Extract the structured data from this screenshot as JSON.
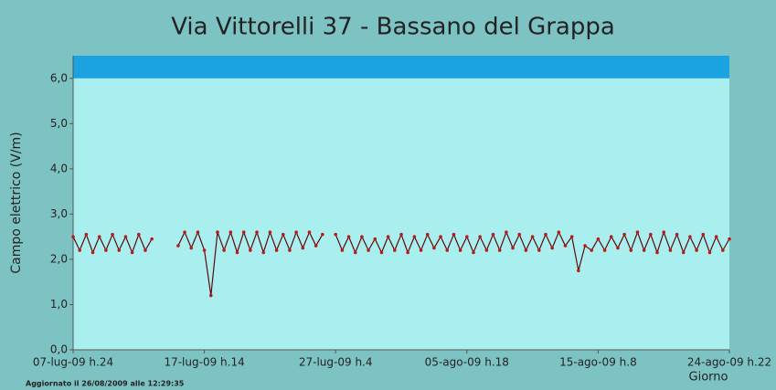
{
  "chart_data": {
    "type": "line",
    "title": "Via Vittorelli 37 - Bassano del Grappa",
    "y_label": "Campo elettrico (V/m)",
    "x_label": "Giorno",
    "footer": "Aggiornato il 26/08/2009 alle 12:29:35",
    "ylim": [
      0,
      6.5
    ],
    "yticks": [
      {
        "value": 0,
        "label": "0,0"
      },
      {
        "value": 1,
        "label": "1,0"
      },
      {
        "value": 2,
        "label": "2,0"
      },
      {
        "value": 3,
        "label": "3,0"
      },
      {
        "value": 4,
        "label": "4,0"
      },
      {
        "value": 5,
        "label": "5,0"
      },
      {
        "value": 6,
        "label": "6,0"
      }
    ],
    "band": [
      6,
      6.5
    ],
    "band_color": "#1aa3e0",
    "categories": [
      "07-lug-09 h.24",
      null,
      null,
      null,
      null,
      null,
      null,
      null,
      null,
      null,
      null,
      null,
      null,
      null,
      null,
      null,
      null,
      null,
      null,
      null,
      "17-lug-09 h.14",
      null,
      null,
      null,
      null,
      null,
      null,
      null,
      null,
      null,
      null,
      null,
      null,
      null,
      null,
      null,
      null,
      null,
      null,
      null,
      "27-lug-09 h.4",
      null,
      null,
      null,
      null,
      null,
      null,
      null,
      null,
      null,
      null,
      null,
      null,
      null,
      null,
      null,
      null,
      null,
      null,
      null,
      "05-ago-09 h.18",
      null,
      null,
      null,
      null,
      null,
      null,
      null,
      null,
      null,
      null,
      null,
      null,
      null,
      null,
      null,
      null,
      null,
      null,
      null,
      "15-ago-09 h.8",
      null,
      null,
      null,
      null,
      null,
      null,
      null,
      null,
      null,
      null,
      null,
      null,
      null,
      null,
      null,
      null,
      null,
      null,
      null,
      "24-ago-09 h.22"
    ],
    "series": [
      {
        "color": "#5a0a0a",
        "values": [
          2.5,
          2.2,
          2.55,
          2.15,
          2.5,
          2.2,
          2.55,
          2.2,
          2.5,
          2.15,
          2.55,
          2.2,
          2.45,
          null,
          null,
          null,
          2.3,
          2.6,
          2.25,
          2.6,
          2.2,
          1.2,
          2.6,
          2.2,
          2.6,
          2.15,
          2.6,
          2.2,
          2.6,
          2.15,
          2.6,
          2.2,
          2.55,
          2.2,
          2.6,
          2.25,
          2.6,
          2.3,
          2.55,
          null,
          2.55,
          2.2,
          2.5,
          2.15,
          2.5,
          2.2,
          2.45,
          2.15,
          2.5,
          2.2,
          2.55,
          2.15,
          2.5,
          2.2,
          2.55,
          2.25,
          2.5,
          2.2,
          2.55,
          2.2,
          2.5,
          2.15,
          2.5,
          2.2,
          2.55,
          2.2,
          2.6,
          2.25,
          2.55,
          2.2,
          2.5,
          2.2,
          2.55,
          2.25,
          2.6,
          2.3,
          2.5,
          1.75,
          2.3,
          2.2,
          2.45,
          2.2,
          2.5,
          2.25,
          2.55,
          2.2,
          2.6,
          2.2,
          2.55,
          2.15,
          2.6,
          2.2,
          2.55,
          2.15,
          2.5,
          2.2,
          2.55,
          2.15,
          2.5,
          2.2,
          2.45
        ]
      }
    ]
  }
}
